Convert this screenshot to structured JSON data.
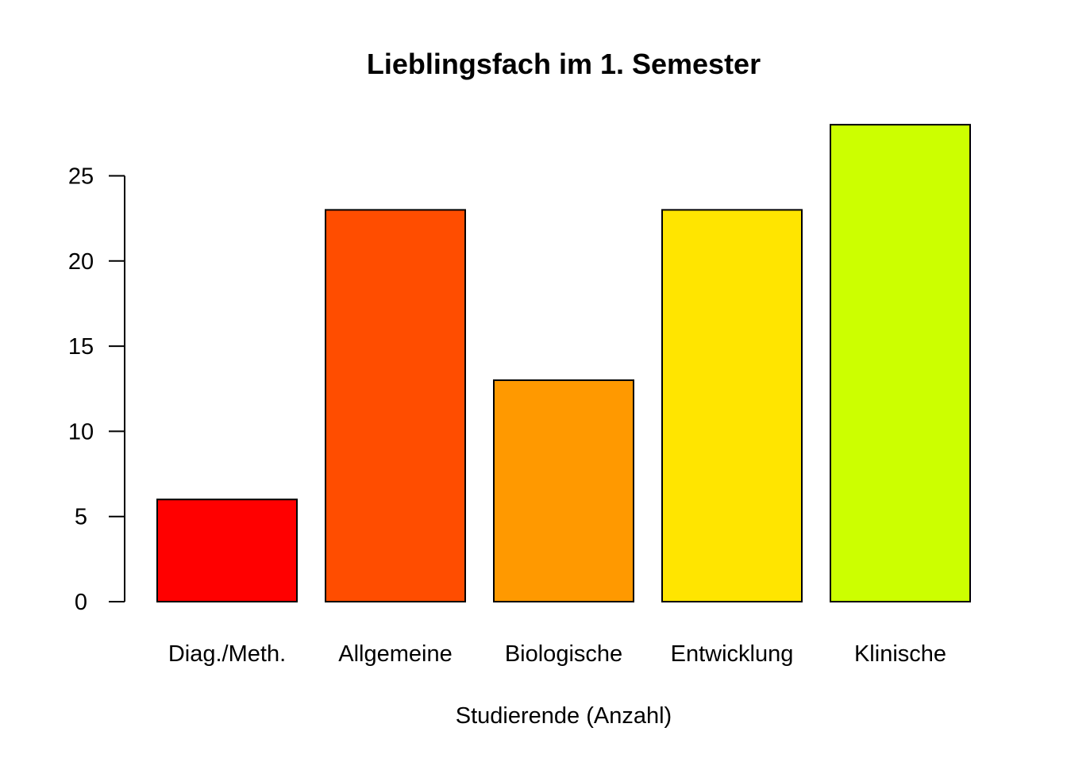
{
  "chart_data": {
    "type": "bar",
    "title": "Lieblingsfach im 1. Semester",
    "xlabel": "Studierende (Anzahl)",
    "ylabel": "",
    "categories": [
      "Diag./Meth.",
      "Allgemeine",
      "Biologische",
      "Entwicklung",
      "Klinische"
    ],
    "values": [
      6,
      23,
      13,
      23,
      28
    ],
    "colors": [
      "#FF0000",
      "#FF4D00",
      "#FF9900",
      "#FFE500",
      "#CCFF00"
    ],
    "yticks": [
      0,
      5,
      10,
      15,
      20,
      25
    ],
    "ylim": [
      0,
      28
    ],
    "grid": false,
    "legend": "none"
  }
}
